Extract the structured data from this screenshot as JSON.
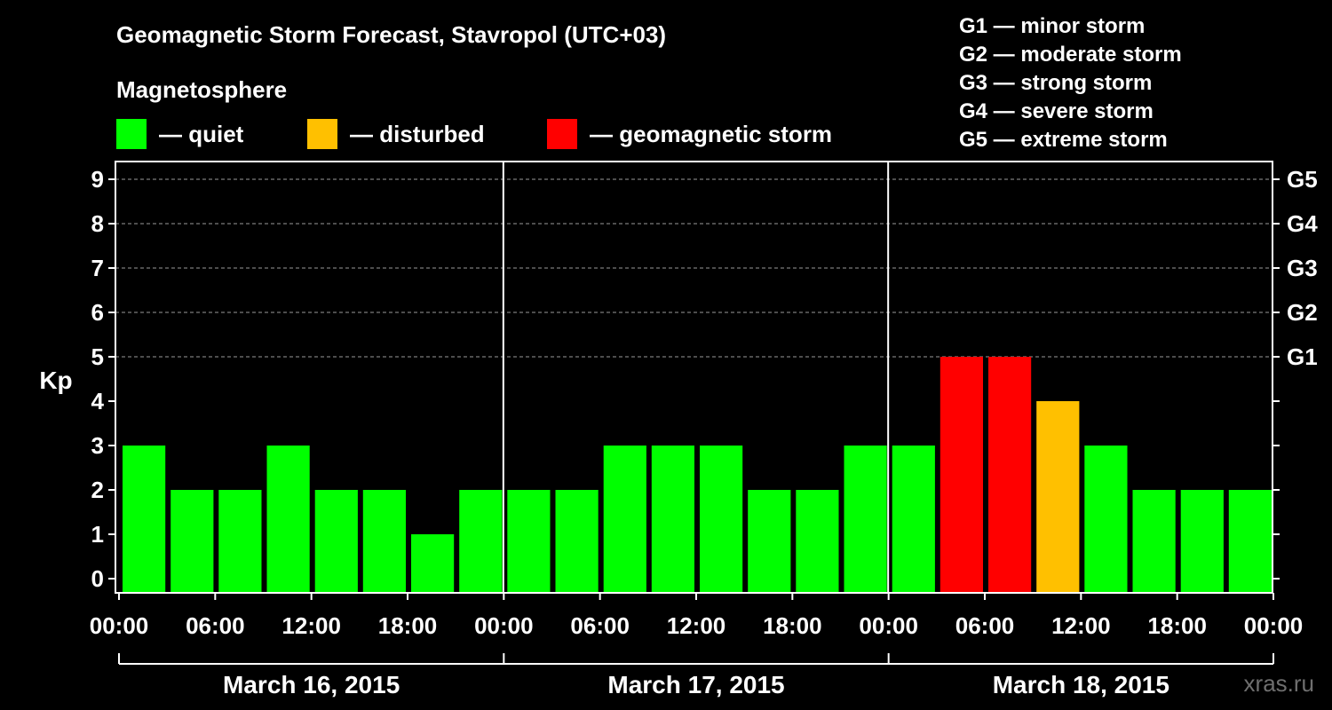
{
  "title": "Geomagnetic Storm Forecast, Stavropol (UTC+03)",
  "legend": {
    "heading": "Magnetosphere",
    "items": [
      {
        "key": "quiet",
        "label": "— quiet",
        "color": "#00ff00"
      },
      {
        "key": "disturbed",
        "label": "— disturbed",
        "color": "#ffc000"
      },
      {
        "key": "storm",
        "label": "— geomagnetic storm",
        "color": "#ff0000"
      }
    ]
  },
  "storm_scale": [
    "G1 — minor storm",
    "G2 — moderate storm",
    "G3 — strong storm",
    "G4 — severe storm",
    "G5 — extreme storm"
  ],
  "watermark": "xras.ru",
  "chart_data": {
    "type": "bar",
    "title": "Geomagnetic Storm Forecast, Stavropol (UTC+03)",
    "ylabel": "Kp",
    "ylim": [
      0,
      9
    ],
    "yticks": [
      "0",
      "1",
      "2",
      "3",
      "4",
      "5",
      "6",
      "7",
      "8",
      "9"
    ],
    "right_axis_labels": [
      {
        "kp": 5,
        "label": "G1"
      },
      {
        "kp": 6,
        "label": "G2"
      },
      {
        "kp": 7,
        "label": "G3"
      },
      {
        "kp": 8,
        "label": "G4"
      },
      {
        "kp": 9,
        "label": "G5"
      }
    ],
    "days": [
      "March 16, 2015",
      "March 17, 2015",
      "March 18, 2015"
    ],
    "xticks": [
      "00:00",
      "06:00",
      "12:00",
      "18:00",
      "00:00",
      "06:00",
      "12:00",
      "18:00",
      "00:00",
      "06:00",
      "12:00",
      "18:00",
      "00:00"
    ],
    "interval_hours": 3,
    "values": [
      3,
      2,
      2,
      3,
      2,
      2,
      1,
      2,
      2,
      2,
      3,
      3,
      3,
      2,
      2,
      3,
      3,
      5,
      5,
      4,
      3,
      2,
      2,
      2
    ],
    "colors": {
      "quiet": "#00ff00",
      "disturbed": "#ffc000",
      "storm": "#ff0000"
    },
    "thresholds": {
      "disturbed": 4,
      "storm": 5
    },
    "grid": true
  }
}
